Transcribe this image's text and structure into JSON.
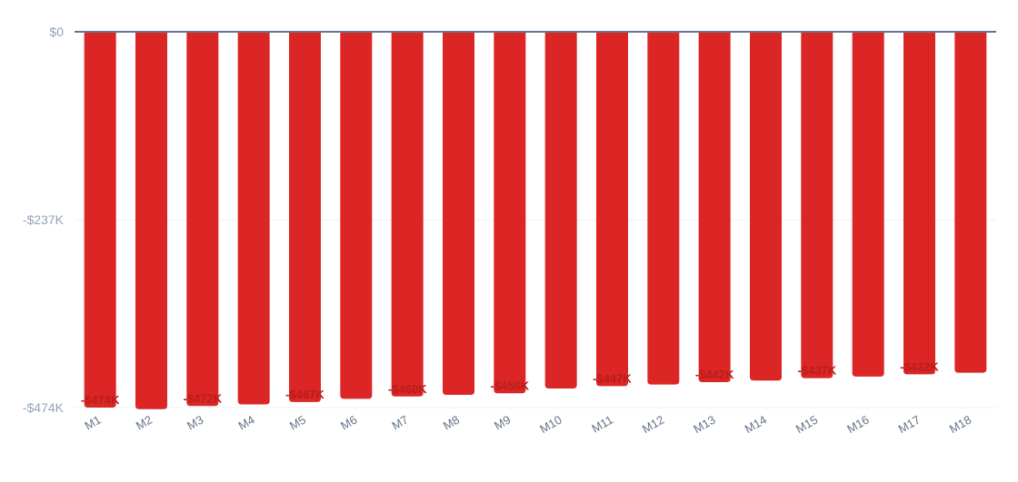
{
  "colors": {
    "bar": "#dc2626",
    "data_label": "#b91c1c",
    "zero_line": "#64748b",
    "grid": "#eef2f6",
    "tick": "#94a3b8",
    "x_tick": "#64748b"
  },
  "chart_data": {
    "type": "bar",
    "categories": [
      "M1",
      "M2",
      "M3",
      "M4",
      "M5",
      "M6",
      "M7",
      "M8",
      "M9",
      "M10",
      "M11",
      "M12",
      "M13",
      "M14",
      "M15",
      "M16",
      "M17",
      "M18"
    ],
    "values": [
      -474,
      -476,
      -472,
      -470,
      -467,
      -463,
      -460,
      -458,
      -456,
      -450,
      -447,
      -445,
      -442,
      -440,
      -437,
      -435,
      -432,
      -430
    ],
    "value_unit": "$K",
    "data_labels": [
      "-$474K",
      "",
      "-$472K",
      "",
      "-$467K",
      "",
      "-$460K",
      "",
      "-$456K",
      "",
      "-$447K",
      "",
      "-$442K",
      "",
      "-$437K",
      "",
      "-$432K",
      ""
    ],
    "ytick_values": [
      0,
      -237,
      -474
    ],
    "ytick_labels": [
      "$0",
      "-$237K",
      "-$474K"
    ],
    "ylim": [
      -474,
      0
    ],
    "title": "",
    "xlabel": "",
    "ylabel": "",
    "grid": true
  }
}
